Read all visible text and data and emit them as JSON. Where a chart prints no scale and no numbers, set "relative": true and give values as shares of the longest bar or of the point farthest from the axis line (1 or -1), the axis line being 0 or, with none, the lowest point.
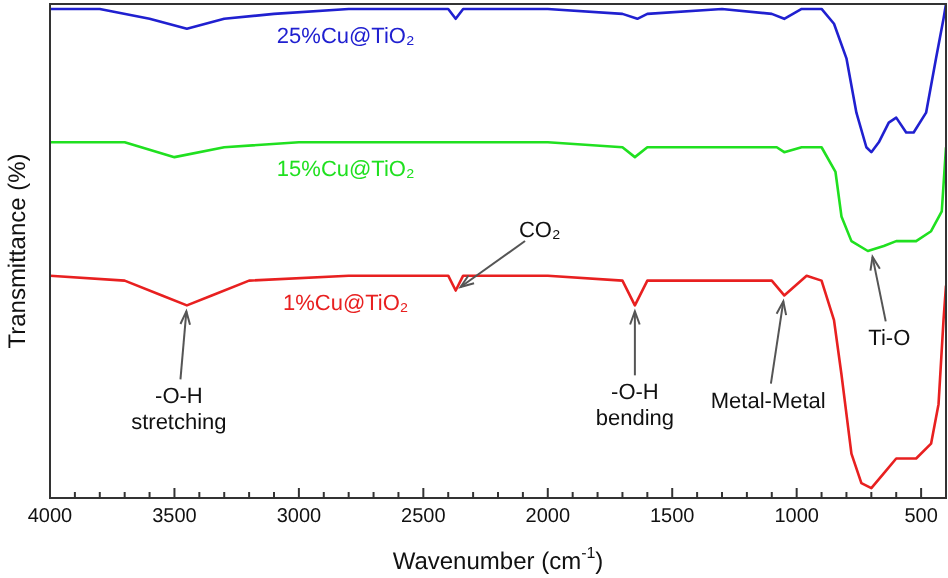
{
  "chart_data": {
    "type": "line",
    "xlabel": "Wavenumber (cm$^{-1}$)",
    "ylabel": "Transmittance (%)",
    "relative": true,
    "legend": false,
    "grid": false,
    "xlim": [
      4000,
      400
    ],
    "xticks": [
      4000,
      {
        "value": 3900,
        "label": null
      },
      {
        "value": 3800,
        "label": null
      },
      {
        "value": 3700,
        "label": null
      },
      {
        "value": 3600,
        "label": null
      },
      3500,
      {
        "value": 3400,
        "label": null
      },
      {
        "value": 3300,
        "label": null
      },
      {
        "value": 3200,
        "label": null
      },
      {
        "value": 3100,
        "label": null
      },
      3000,
      {
        "value": 2900,
        "label": null
      },
      {
        "value": 2800,
        "label": null
      },
      {
        "value": 2700,
        "label": null
      },
      {
        "value": 2600,
        "label": null
      },
      2500,
      {
        "value": 2400,
        "label": null
      },
      {
        "value": 2300,
        "label": null
      },
      {
        "value": 2200,
        "label": null
      },
      {
        "value": 2100,
        "label": null
      },
      2000,
      {
        "value": 1900,
        "label": null
      },
      {
        "value": 1800,
        "label": null
      },
      {
        "value": 1700,
        "label": null
      },
      {
        "value": 1600,
        "label": null
      },
      1500,
      {
        "value": 1400,
        "label": null
      },
      {
        "value": 1300,
        "label": null
      },
      {
        "value": 1200,
        "label": null
      },
      {
        "value": 1100,
        "label": null
      },
      1000,
      {
        "value": 900,
        "label": null
      },
      {
        "value": 800,
        "label": null
      },
      {
        "value": 700,
        "label": null
      },
      {
        "value": 600,
        "label": null
      },
      500
    ],
    "series": [
      {
        "name": "25%Cu@TiO₂",
        "color": "#2020d0",
        "x": [
          4000,
          3800,
          3600,
          3450,
          3300,
          3100,
          2800,
          2400,
          2370,
          2340,
          2000,
          1700,
          1640,
          1600,
          1300,
          1100,
          1050,
          980,
          900,
          850,
          800,
          760,
          720,
          700,
          670,
          630,
          600,
          560,
          530,
          480,
          440,
          410,
          400
        ],
        "values": [
          0.99,
          0.99,
          0.97,
          0.95,
          0.97,
          0.98,
          0.99,
          0.99,
          0.97,
          0.99,
          0.99,
          0.98,
          0.97,
          0.98,
          0.99,
          0.98,
          0.97,
          0.99,
          0.99,
          0.96,
          0.89,
          0.78,
          0.71,
          0.7,
          0.72,
          0.76,
          0.77,
          0.74,
          0.74,
          0.78,
          0.89,
          0.97,
          1
        ]
      },
      {
        "name": "15%Cu@TiO₂",
        "color": "#20e020",
        "x": [
          4000,
          3700,
          3500,
          3300,
          3000,
          2500,
          2000,
          1700,
          1650,
          1600,
          1300,
          1080,
          1050,
          980,
          900,
          844,
          820,
          780,
          714,
          650,
          600,
          520,
          460,
          417,
          400
        ],
        "values": [
          0.72,
          0.72,
          0.69,
          0.71,
          0.72,
          0.72,
          0.72,
          0.71,
          0.69,
          0.71,
          0.71,
          0.71,
          0.7,
          0.71,
          0.71,
          0.66,
          0.57,
          0.52,
          0.5,
          0.51,
          0.52,
          0.52,
          0.54,
          0.58,
          0.71
        ]
      },
      {
        "name": "1%Cu@TiO₂",
        "color": "#e82020",
        "x": [
          4000,
          3700,
          3550,
          3450,
          3350,
          3200,
          2800,
          2400,
          2370,
          2340,
          2000,
          1700,
          1650,
          1600,
          1300,
          1100,
          1050,
          960,
          900,
          850,
          820,
          780,
          740,
          700,
          650,
          600,
          520,
          460,
          430,
          410,
          400
        ],
        "values": [
          0.45,
          0.44,
          0.41,
          0.39,
          0.41,
          0.44,
          0.45,
          0.45,
          0.42,
          0.45,
          0.45,
          0.44,
          0.39,
          0.44,
          0.44,
          0.44,
          0.41,
          0.45,
          0.44,
          0.36,
          0.25,
          0.09,
          0.03,
          0.02,
          0.05,
          0.08,
          0.08,
          0.11,
          0.19,
          0.36,
          0.43
        ]
      }
    ],
    "annotations": [
      {
        "text": "CO₂",
        "x": 2370,
        "y": 0.42
      },
      {
        "text": "-O-H stretching",
        "x": 3450,
        "y": 0.39
      },
      {
        "text": "-O-H bending",
        "x": 1650,
        "y": 0.39
      },
      {
        "text": "Metal-Metal",
        "x": 1050,
        "y": 0.41
      },
      {
        "text": "Ti-O",
        "x": 700,
        "y": 0.5
      }
    ]
  }
}
